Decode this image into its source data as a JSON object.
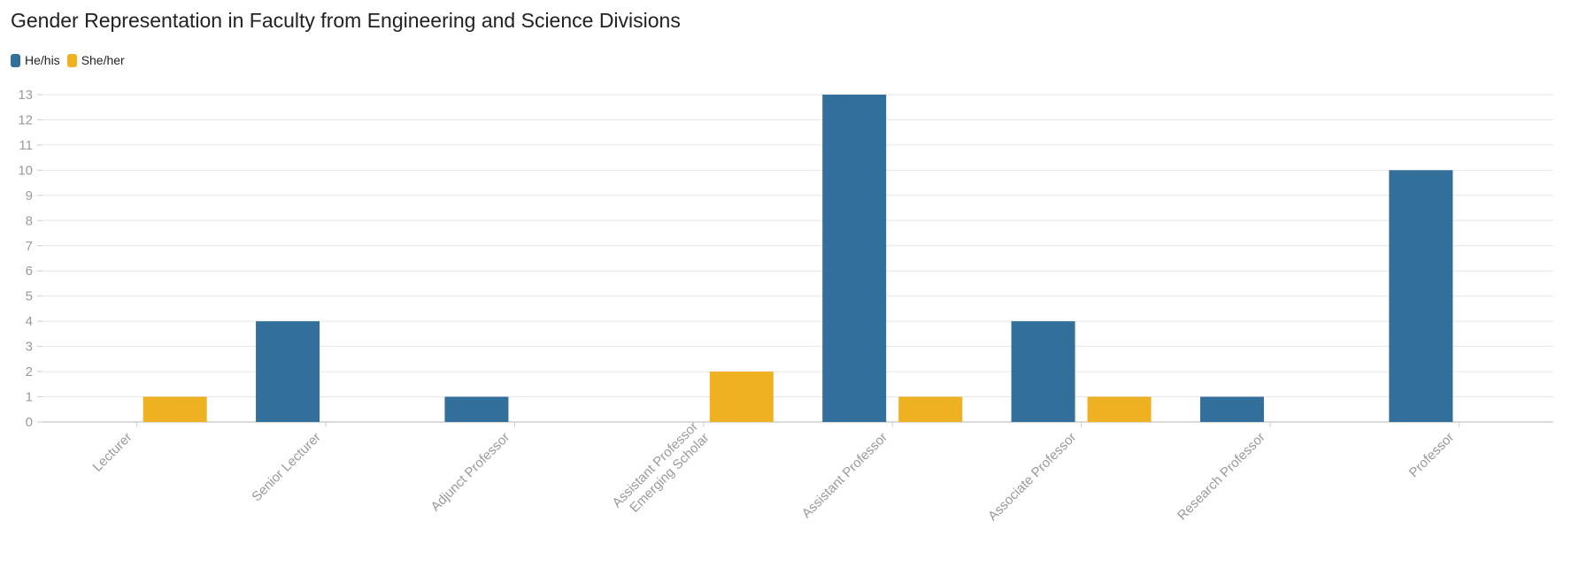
{
  "chart_data": {
    "type": "bar",
    "title": "Gender Representation in Faculty from Engineering and Science Divisions",
    "xlabel": "",
    "ylabel": "",
    "categories": [
      "Lecturer",
      "Senior Lecturer",
      "Adjunct Professor",
      "Assistant Professor\nEmerging Scholar",
      "Assistant Professor",
      "Associate Professor",
      "Research Professor",
      "Professor"
    ],
    "series": [
      {
        "name": "He/his",
        "color": "#336f9b",
        "values": [
          0,
          4,
          1,
          0,
          13,
          4,
          1,
          10
        ]
      },
      {
        "name": "She/her",
        "color": "#eeb122",
        "values": [
          1,
          0,
          0,
          2,
          1,
          1,
          0,
          0
        ]
      }
    ],
    "ylim": [
      0,
      13
    ],
    "yticks": [
      0,
      1,
      2,
      3,
      4,
      5,
      6,
      7,
      8,
      9,
      10,
      11,
      12,
      13
    ],
    "grid": true,
    "legend_position": "top-left"
  }
}
